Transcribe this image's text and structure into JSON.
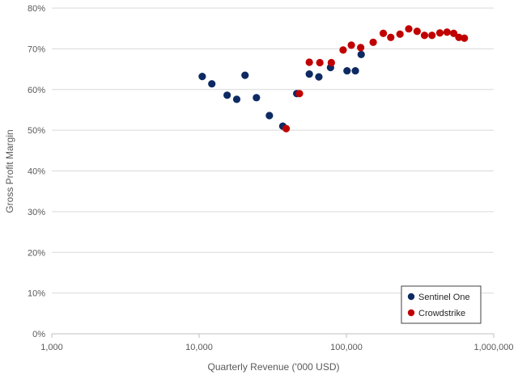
{
  "chart_data": {
    "type": "scatter",
    "xlabel": "Quarterly Revenue ('000 USD)",
    "ylabel": "Gross Profit Margin",
    "x_scale": "log",
    "xlim": [
      1000,
      1000000
    ],
    "ylim": [
      0,
      80
    ],
    "x_ticks": [
      1000,
      10000,
      100000,
      1000000
    ],
    "x_tick_labels": [
      "1,000",
      "10,000",
      "100,000",
      "1,000,000"
    ],
    "y_ticks": [
      0,
      10,
      20,
      30,
      40,
      50,
      60,
      70,
      80
    ],
    "y_tick_labels": [
      "0%",
      "10%",
      "20%",
      "30%",
      "40%",
      "50%",
      "60%",
      "70%",
      "80%"
    ],
    "grid": "horizontal",
    "legend_position": "bottom-right",
    "series": [
      {
        "name": "Sentinel One",
        "color": "#0e2a63",
        "points": [
          [
            10500,
            63.2
          ],
          [
            12200,
            61.4
          ],
          [
            15500,
            58.6
          ],
          [
            18000,
            57.6
          ],
          [
            20500,
            63.5
          ],
          [
            24500,
            58.0
          ],
          [
            30000,
            53.6
          ],
          [
            37000,
            51.0
          ],
          [
            46000,
            59.0
          ],
          [
            56000,
            63.8
          ],
          [
            65000,
            63.1
          ],
          [
            78000,
            65.4
          ],
          [
            101000,
            64.6
          ],
          [
            115000,
            64.6
          ],
          [
            126000,
            68.6
          ]
        ]
      },
      {
        "name": "Crowdstrike",
        "color": "#c00000",
        "points": [
          [
            39000,
            50.4
          ],
          [
            48000,
            59.0
          ],
          [
            56000,
            66.7
          ],
          [
            66000,
            66.6
          ],
          [
            79000,
            66.6
          ],
          [
            95000,
            69.7
          ],
          [
            108000,
            70.9
          ],
          [
            125000,
            70.3
          ],
          [
            152000,
            71.6
          ],
          [
            178000,
            73.8
          ],
          [
            200000,
            72.8
          ],
          [
            231000,
            73.6
          ],
          [
            265000,
            74.9
          ],
          [
            302000,
            74.3
          ],
          [
            339000,
            73.3
          ],
          [
            381000,
            73.3
          ],
          [
            431000,
            73.9
          ],
          [
            482000,
            74.1
          ],
          [
            535000,
            73.8
          ],
          [
            580000,
            72.8
          ],
          [
            632000,
            72.6
          ]
        ]
      }
    ]
  }
}
